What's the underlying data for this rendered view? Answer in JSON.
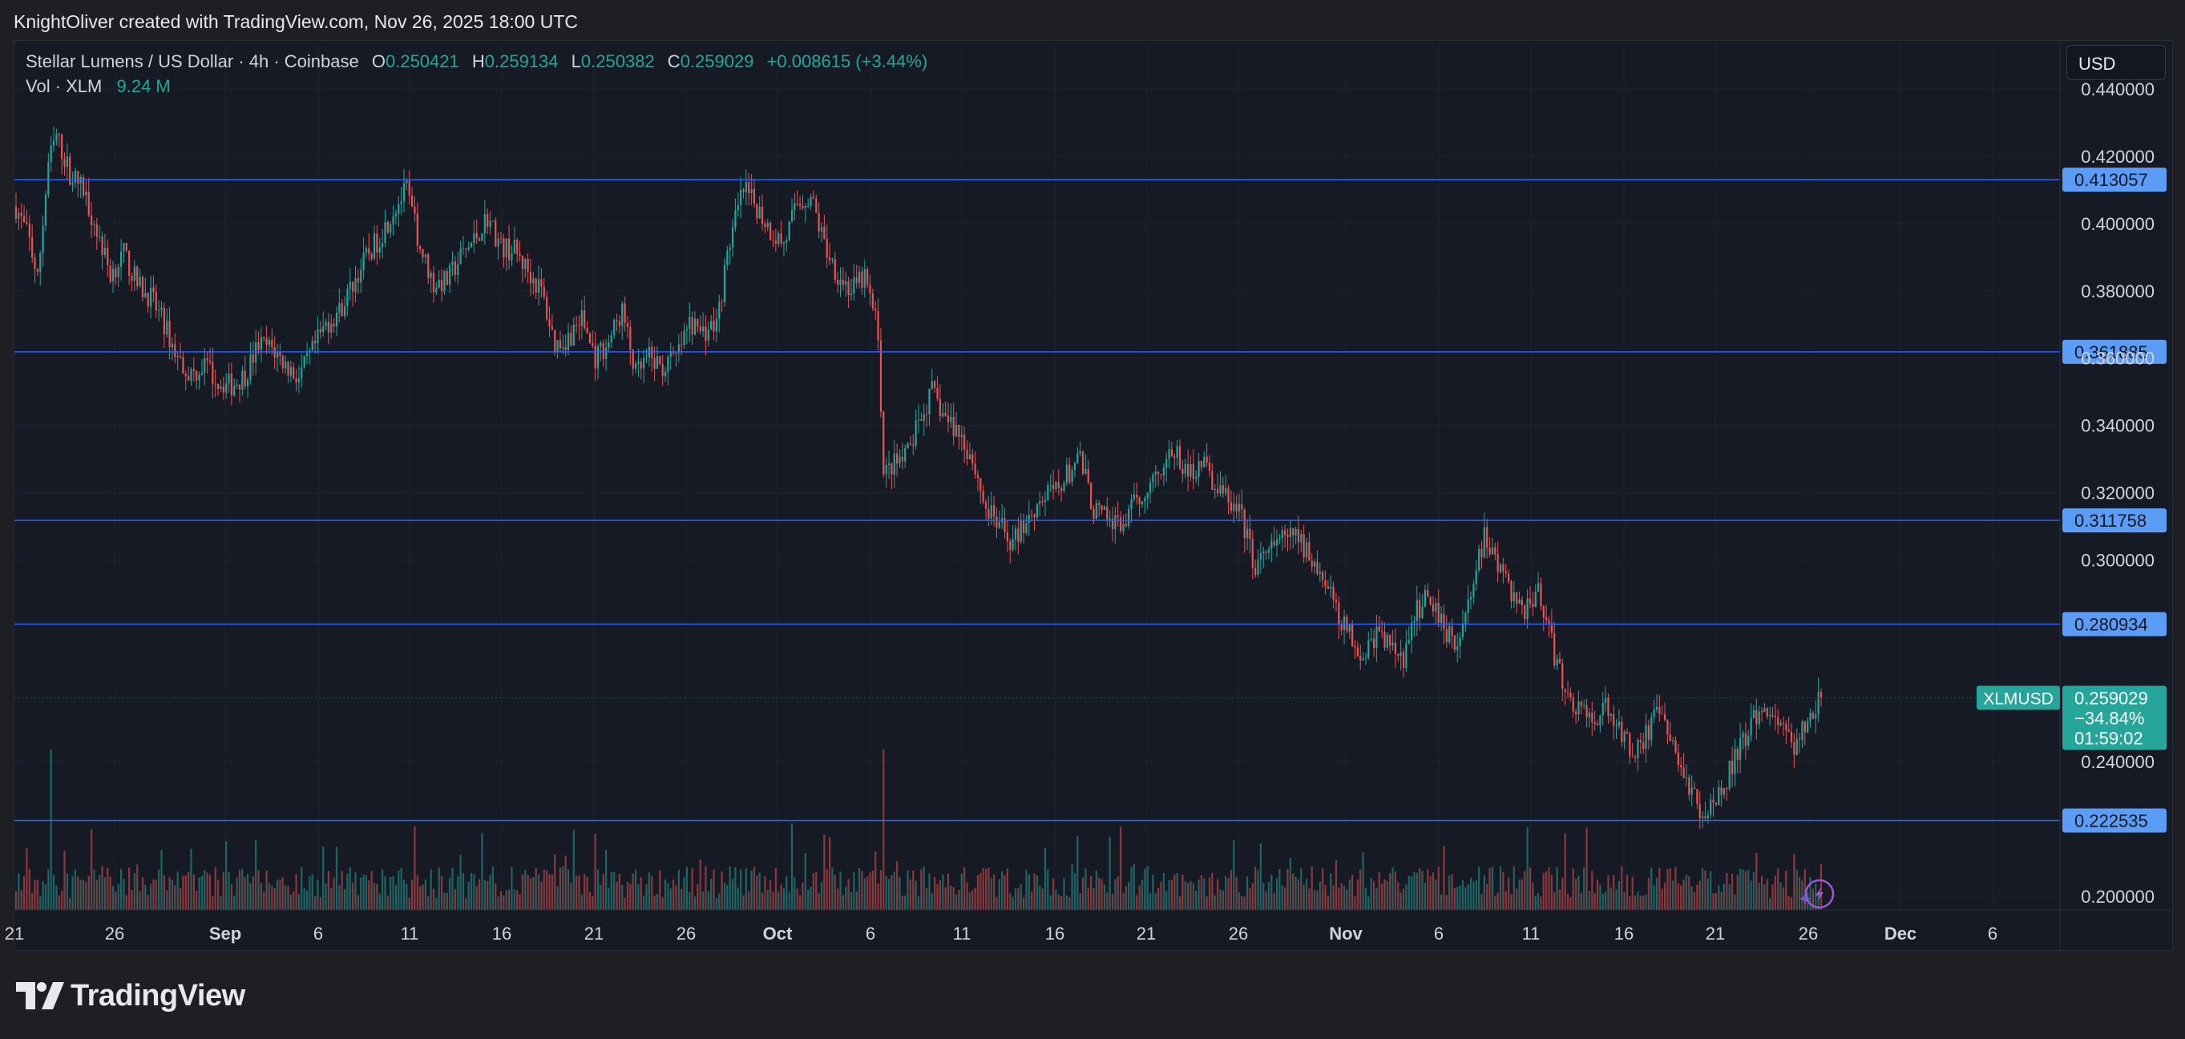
{
  "attribution": "KnightOliver created with TradingView.com, Nov 26, 2025 18:00 UTC",
  "currency_selector": "USD",
  "legend": {
    "symbol": "Stellar Lumens / US Dollar · 4h · Coinbase",
    "o_label": "O",
    "o_value": "0.250421",
    "h_label": "H",
    "h_value": "0.259134",
    "l_label": "L",
    "l_value": "0.250382",
    "c_label": "C",
    "c_value": "0.259029",
    "change": "+0.008615 (+3.44%)"
  },
  "volume_legend": {
    "label": "Vol · XLM",
    "value": "9.24 M"
  },
  "brand": "TradingView",
  "colors": {
    "up": "#26a69a",
    "down": "#ef5350",
    "level_line": "#2962ff",
    "level_label_bg": "#5b9cf6",
    "background": "#161a25"
  },
  "chart_data": {
    "type": "candlestick",
    "interval": "4h",
    "y_axis": {
      "ticks": [
        "0.440000",
        "0.420000",
        "0.400000",
        "0.380000",
        "0.360000",
        "0.340000",
        "0.320000",
        "0.300000",
        "0.240000",
        "0.200000"
      ],
      "ylim": [
        0.198,
        0.445
      ]
    },
    "x_axis": {
      "ticks": [
        "21",
        "26",
        "Sep",
        "6",
        "11",
        "16",
        "21",
        "26",
        "Oct",
        "6",
        "11",
        "16",
        "21",
        "26",
        "Nov",
        "6",
        "11",
        "16",
        "21",
        "26",
        "Dec",
        "6"
      ]
    },
    "horizontal_levels": [
      "0.413057",
      "0.361885",
      "0.311758",
      "0.280934",
      "0.222535"
    ],
    "current_price": {
      "symbol": "XLMUSD",
      "price": "0.259029",
      "change_pct": "−34.84%",
      "countdown": "01:59:02"
    },
    "price_path": [
      [
        0,
        0.405
      ],
      [
        5,
        0.395
      ],
      [
        8,
        0.383
      ],
      [
        12,
        0.418
      ],
      [
        15,
        0.426
      ],
      [
        20,
        0.415
      ],
      [
        25,
        0.41
      ],
      [
        30,
        0.398
      ],
      [
        35,
        0.385
      ],
      [
        40,
        0.391
      ],
      [
        45,
        0.382
      ],
      [
        50,
        0.378
      ],
      [
        55,
        0.37
      ],
      [
        60,
        0.36
      ],
      [
        65,
        0.355
      ],
      [
        70,
        0.358
      ],
      [
        75,
        0.353
      ],
      [
        80,
        0.352
      ],
      [
        85,
        0.355
      ],
      [
        90,
        0.364
      ],
      [
        95,
        0.363
      ],
      [
        100,
        0.358
      ],
      [
        105,
        0.354
      ],
      [
        110,
        0.362
      ],
      [
        115,
        0.37
      ],
      [
        120,
        0.374
      ],
      [
        125,
        0.382
      ],
      [
        130,
        0.39
      ],
      [
        135,
        0.396
      ],
      [
        140,
        0.404
      ],
      [
        145,
        0.41
      ],
      [
        150,
        0.393
      ],
      [
        155,
        0.382
      ],
      [
        160,
        0.383
      ],
      [
        165,
        0.39
      ],
      [
        170,
        0.395
      ],
      [
        175,
        0.402
      ],
      [
        180,
        0.393
      ],
      [
        185,
        0.392
      ],
      [
        190,
        0.386
      ],
      [
        195,
        0.38
      ],
      [
        200,
        0.364
      ],
      [
        205,
        0.366
      ],
      [
        210,
        0.372
      ],
      [
        215,
        0.36
      ],
      [
        220,
        0.365
      ],
      [
        225,
        0.374
      ],
      [
        230,
        0.355
      ],
      [
        235,
        0.36
      ],
      [
        240,
        0.357
      ],
      [
        245,
        0.36
      ],
      [
        250,
        0.37
      ],
      [
        255,
        0.368
      ],
      [
        260,
        0.37
      ],
      [
        265,
        0.395
      ],
      [
        270,
        0.41
      ],
      [
        275,
        0.405
      ],
      [
        280,
        0.398
      ],
      [
        285,
        0.394
      ],
      [
        290,
        0.406
      ],
      [
        295,
        0.408
      ],
      [
        300,
        0.394
      ],
      [
        305,
        0.385
      ],
      [
        310,
        0.38
      ],
      [
        315,
        0.384
      ],
      [
        320,
        0.368
      ],
      [
        322,
        0.325
      ],
      [
        325,
        0.328
      ],
      [
        330,
        0.33
      ],
      [
        335,
        0.34
      ],
      [
        340,
        0.35
      ],
      [
        345,
        0.342
      ],
      [
        350,
        0.338
      ],
      [
        355,
        0.33
      ],
      [
        360,
        0.315
      ],
      [
        365,
        0.31
      ],
      [
        370,
        0.305
      ],
      [
        375,
        0.312
      ],
      [
        380,
        0.318
      ],
      [
        385,
        0.32
      ],
      [
        390,
        0.325
      ],
      [
        395,
        0.33
      ],
      [
        400,
        0.315
      ],
      [
        405,
        0.312
      ],
      [
        410,
        0.31
      ],
      [
        415,
        0.316
      ],
      [
        420,
        0.322
      ],
      [
        425,
        0.328
      ],
      [
        430,
        0.332
      ],
      [
        435,
        0.325
      ],
      [
        440,
        0.33
      ],
      [
        445,
        0.322
      ],
      [
        450,
        0.318
      ],
      [
        455,
        0.312
      ],
      [
        460,
        0.298
      ],
      [
        465,
        0.302
      ],
      [
        470,
        0.306
      ],
      [
        475,
        0.307
      ],
      [
        480,
        0.302
      ],
      [
        485,
        0.295
      ],
      [
        490,
        0.285
      ],
      [
        495,
        0.278
      ],
      [
        500,
        0.272
      ],
      [
        505,
        0.278
      ],
      [
        510,
        0.275
      ],
      [
        515,
        0.27
      ],
      [
        520,
        0.285
      ],
      [
        525,
        0.29
      ],
      [
        530,
        0.28
      ],
      [
        535,
        0.275
      ],
      [
        540,
        0.29
      ],
      [
        545,
        0.307
      ],
      [
        550,
        0.298
      ],
      [
        555,
        0.29
      ],
      [
        560,
        0.285
      ],
      [
        565,
        0.292
      ],
      [
        570,
        0.275
      ],
      [
        575,
        0.26
      ],
      [
        580,
        0.256
      ],
      [
        585,
        0.252
      ],
      [
        590,
        0.256
      ],
      [
        595,
        0.25
      ],
      [
        600,
        0.243
      ],
      [
        605,
        0.248
      ],
      [
        610,
        0.255
      ],
      [
        615,
        0.244
      ],
      [
        620,
        0.235
      ],
      [
        625,
        0.225
      ],
      [
        630,
        0.228
      ],
      [
        635,
        0.235
      ],
      [
        640,
        0.245
      ],
      [
        645,
        0.252
      ],
      [
        650,
        0.256
      ],
      [
        655,
        0.25
      ],
      [
        660,
        0.245
      ],
      [
        665,
        0.251
      ],
      [
        670,
        0.259
      ]
    ]
  }
}
